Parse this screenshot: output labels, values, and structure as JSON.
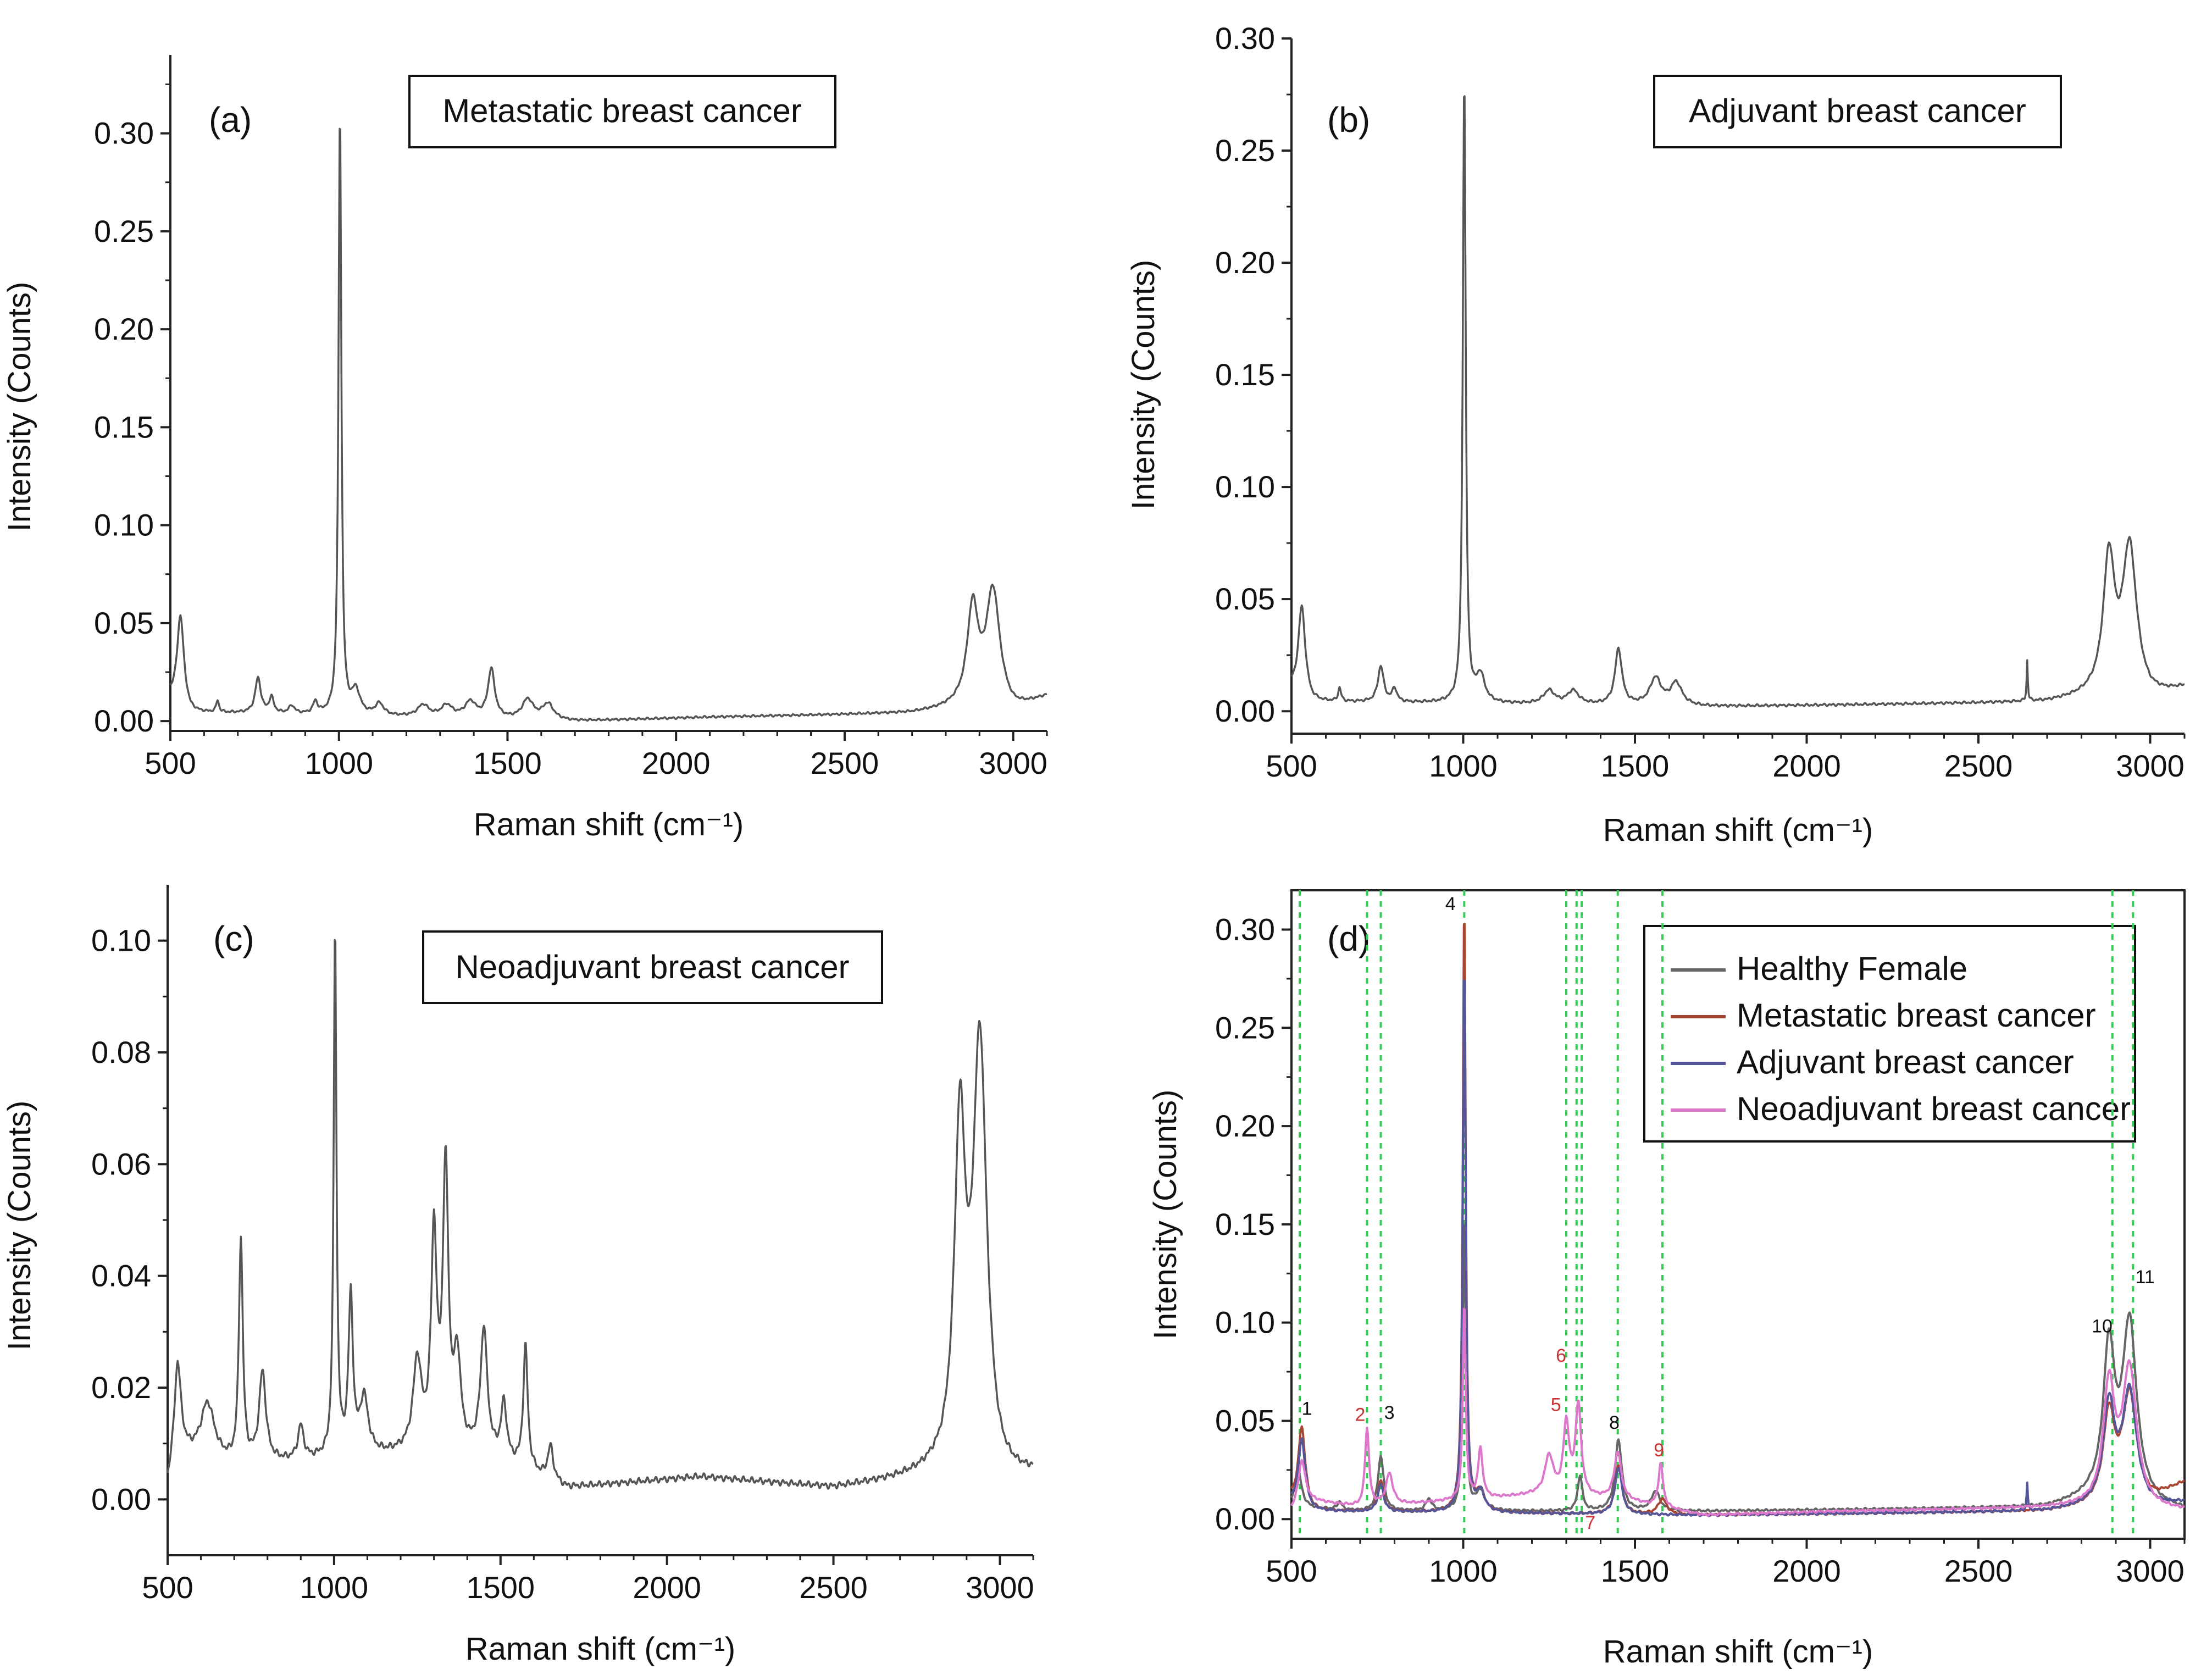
{
  "chart_data": [
    {
      "type": "line",
      "panel_label": "(a)",
      "box_title": "Metastatic breast cancer",
      "xlabel": "Raman shift (cm⁻¹)",
      "ylabel": "Intensity (Counts)",
      "xlim": [
        500,
        3100
      ],
      "ylim": [
        -0.005,
        0.34
      ],
      "xticks": [
        500,
        1000,
        1500,
        2000,
        2500,
        3000
      ],
      "xtick_labels": [
        "500",
        "1000",
        "1500",
        "2000",
        "2500",
        "3000"
      ],
      "yticks": [
        0,
        0.05,
        0.1,
        0.15,
        0.2,
        0.25,
        0.3
      ],
      "ytick_labels": [
        "0.00",
        "0.05",
        "0.10",
        "0.15",
        "0.20",
        "0.25",
        "0.30"
      ],
      "series": [
        {
          "name": "Metastatic breast cancer",
          "color": "#555555",
          "peaks": [
            [
              530,
              0.046,
              12
            ],
            [
              640,
              0.006,
              5
            ],
            [
              760,
              0.018,
              10
            ],
            [
              800,
              0.008,
              8
            ],
            [
              860,
              0.004,
              10
            ],
            [
              930,
              0.006,
              8
            ],
            [
              1003,
              0.31,
              5
            ],
            [
              1050,
              0.012,
              15
            ],
            [
              1120,
              0.006,
              15
            ],
            [
              1250,
              0.006,
              20
            ],
            [
              1320,
              0.006,
              20
            ],
            [
              1390,
              0.008,
              20
            ],
            [
              1452,
              0.025,
              12
            ],
            [
              1560,
              0.01,
              20
            ],
            [
              1620,
              0.008,
              20
            ],
            [
              2880,
              0.05,
              20
            ],
            [
              2940,
              0.06,
              25
            ]
          ],
          "baseline": [
            [
              500,
              0.012
            ],
            [
              560,
              0.004
            ],
            [
              700,
              0.004
            ],
            [
              1700,
              0.0
            ],
            [
              2100,
              0.002
            ],
            [
              2700,
              0.004
            ],
            [
              2830,
              0.006
            ],
            [
              3000,
              0.004
            ],
            [
              3100,
              0.012
            ]
          ]
        }
      ]
    },
    {
      "type": "line",
      "panel_label": "(b)",
      "box_title": "Adjuvant breast cancer",
      "xlabel": "Raman shift (cm⁻¹)",
      "ylabel": "Intensity (Counts)",
      "xlim": [
        500,
        3100
      ],
      "ylim": [
        -0.01,
        0.3
      ],
      "xticks": [
        500,
        1000,
        1500,
        2000,
        2500,
        3000
      ],
      "xtick_labels": [
        "500",
        "1000",
        "1500",
        "2000",
        "2500",
        "3000"
      ],
      "yticks": [
        0,
        0.05,
        0.1,
        0.15,
        0.2,
        0.25,
        0.3
      ],
      "ytick_labels": [
        "0.00",
        "0.05",
        "0.10",
        "0.15",
        "0.20",
        "0.25",
        "0.30"
      ],
      "series": [
        {
          "name": "Adjuvant breast cancer",
          "color": "#555555",
          "peaks": [
            [
              530,
              0.04,
              12
            ],
            [
              640,
              0.006,
              5
            ],
            [
              760,
              0.016,
              10
            ],
            [
              800,
              0.006,
              8
            ],
            [
              1003,
              0.28,
              5
            ],
            [
              1050,
              0.012,
              15
            ],
            [
              1250,
              0.006,
              20
            ],
            [
              1320,
              0.006,
              20
            ],
            [
              1452,
              0.025,
              12
            ],
            [
              1560,
              0.012,
              20
            ],
            [
              1620,
              0.01,
              20
            ],
            [
              2642,
              0.018,
              2
            ],
            [
              2880,
              0.06,
              20
            ],
            [
              2940,
              0.066,
              25
            ]
          ],
          "baseline": [
            [
              500,
              0.01
            ],
            [
              560,
              0.004
            ],
            [
              700,
              0.004
            ],
            [
              1700,
              0.002
            ],
            [
              2700,
              0.004
            ],
            [
              2830,
              0.006
            ],
            [
              3000,
              0.005
            ],
            [
              3100,
              0.01
            ]
          ]
        }
      ]
    },
    {
      "type": "line",
      "panel_label": "(c)",
      "box_title": "Neoadjuvant breast cancer",
      "xlabel": "Raman shift (cm⁻¹)",
      "ylabel": "Intensity (Counts)",
      "xlim": [
        500,
        3100
      ],
      "ylim": [
        -0.01,
        0.11
      ],
      "xticks": [
        500,
        1000,
        1500,
        2000,
        2500,
        3000
      ],
      "xtick_labels": [
        "500",
        "1000",
        "1500",
        "2000",
        "2500",
        "3000"
      ],
      "yticks": [
        0,
        0.02,
        0.04,
        0.06,
        0.08,
        0.1
      ],
      "ytick_labels": [
        "0.00",
        "0.02",
        "0.04",
        "0.06",
        "0.08",
        "0.10"
      ],
      "series": [
        {
          "name": "Neoadjuvant breast cancer",
          "color": "#555555",
          "peaks": [
            [
              530,
              0.016,
              12
            ],
            [
              620,
              0.01,
              25
            ],
            [
              720,
              0.04,
              7
            ],
            [
              785,
              0.016,
              12
            ],
            [
              900,
              0.006,
              10
            ],
            [
              1003,
              0.095,
              5
            ],
            [
              1050,
              0.028,
              8
            ],
            [
              1090,
              0.01,
              15
            ],
            [
              1250,
              0.016,
              15
            ],
            [
              1300,
              0.038,
              10
            ],
            [
              1335,
              0.05,
              10
            ],
            [
              1370,
              0.016,
              12
            ],
            [
              1450,
              0.022,
              12
            ],
            [
              1510,
              0.01,
              10
            ],
            [
              1575,
              0.022,
              8
            ],
            [
              1650,
              0.006,
              10
            ],
            [
              2880,
              0.06,
              20
            ],
            [
              2940,
              0.077,
              25
            ]
          ],
          "baseline": [
            [
              500,
              0.002
            ],
            [
              530,
              0.008
            ],
            [
              700,
              0.006
            ],
            [
              1200,
              0.008
            ],
            [
              1450,
              0.008
            ],
            [
              1700,
              0.002
            ],
            [
              2100,
              0.004
            ],
            [
              2500,
              0.002
            ],
            [
              2800,
              0.004
            ],
            [
              3000,
              0.002
            ],
            [
              3100,
              0.004
            ]
          ]
        }
      ]
    },
    {
      "type": "line",
      "panel_label": "(d)",
      "xlabel": "Raman shift (cm⁻¹)",
      "ylabel": "Intensity (Counts)",
      "xlim": [
        500,
        3100
      ],
      "ylim": [
        -0.01,
        0.32
      ],
      "xticks": [
        500,
        1000,
        1500,
        2000,
        2500,
        3000
      ],
      "xtick_labels": [
        "500",
        "1000",
        "1500",
        "2000",
        "2500",
        "3000"
      ],
      "yticks": [
        0,
        0.05,
        0.1,
        0.15,
        0.2,
        0.25,
        0.3
      ],
      "ytick_labels": [
        "0.00",
        "0.05",
        "0.10",
        "0.15",
        "0.20",
        "0.25",
        "0.30"
      ],
      "reference_lines": [
        524,
        720,
        760,
        1003,
        1300,
        1330,
        1345,
        1450,
        1580,
        2890,
        2950
      ],
      "reference_line_color": "#33cc55",
      "legend": [
        {
          "label": "Healthy Female",
          "color": "#666666"
        },
        {
          "label": "Metastatic breast cancer",
          "color": "#aa4433"
        },
        {
          "label": "Adjuvant breast cancer",
          "color": "#555599"
        },
        {
          "label": "Neoadjuvant breast cancer",
          "color": "#dd77cc"
        }
      ],
      "annotations": [
        {
          "label": "1",
          "x": 545,
          "y": 0.053,
          "color": "#111111"
        },
        {
          "label": "2",
          "x": 700,
          "y": 0.05,
          "color": "#cc3333"
        },
        {
          "label": "3",
          "x": 785,
          "y": 0.051,
          "color": "#111111"
        },
        {
          "label": "4",
          "x": 963,
          "y": 0.31,
          "color": "#111111"
        },
        {
          "label": "5",
          "x": 1270,
          "y": 0.055,
          "color": "#cc3333"
        },
        {
          "label": "6",
          "x": 1285,
          "y": 0.08,
          "color": "#cc3333"
        },
        {
          "label": "7",
          "x": 1370,
          "y": -0.005,
          "color": "#cc3333"
        },
        {
          "label": "8",
          "x": 1440,
          "y": 0.046,
          "color": "#111111"
        },
        {
          "label": "9",
          "x": 1570,
          "y": 0.032,
          "color": "#cc3333"
        },
        {
          "label": "10",
          "x": 2860,
          "y": 0.095,
          "color": "#111111"
        },
        {
          "label": "11",
          "x": 2985,
          "y": 0.12,
          "color": "#111111"
        }
      ],
      "series": [
        {
          "name": "Healthy Female",
          "color": "#666666",
          "peaks": [
            [
              520,
              0.018,
              12
            ],
            [
              640,
              0.004,
              8
            ],
            [
              760,
              0.028,
              10
            ],
            [
              900,
              0.006,
              10
            ],
            [
              1003,
              0.15,
              5
            ],
            [
              1050,
              0.01,
              15
            ],
            [
              1340,
              0.018,
              8
            ],
            [
              1452,
              0.036,
              12
            ],
            [
              1560,
              0.01,
              15
            ],
            [
              2880,
              0.075,
              20
            ],
            [
              2940,
              0.09,
              25
            ]
          ],
          "baseline": [
            [
              500,
              0.006
            ],
            [
              700,
              0.004
            ],
            [
              1200,
              0.004
            ],
            [
              1700,
              0.004
            ],
            [
              2700,
              0.006
            ],
            [
              2830,
              0.01
            ],
            [
              3000,
              0.006
            ],
            [
              3100,
              0.004
            ]
          ]
        },
        {
          "name": "Metastatic breast cancer",
          "color": "#aa4433",
          "peaks": [
            [
              530,
              0.04,
              12
            ],
            [
              760,
              0.016,
              10
            ],
            [
              1003,
              0.31,
              5
            ],
            [
              1050,
              0.01,
              15
            ],
            [
              1452,
              0.025,
              12
            ],
            [
              1580,
              0.008,
              15
            ],
            [
              2880,
              0.045,
              20
            ],
            [
              2940,
              0.055,
              25
            ]
          ],
          "baseline": [
            [
              500,
              0.01
            ],
            [
              560,
              0.004
            ],
            [
              1700,
              0.002
            ],
            [
              2700,
              0.004
            ],
            [
              2830,
              0.006
            ],
            [
              3000,
              0.008
            ],
            [
              3100,
              0.018
            ]
          ]
        },
        {
          "name": "Adjuvant breast cancer",
          "color": "#555599",
          "peaks": [
            [
              530,
              0.035,
              12
            ],
            [
              760,
              0.014,
              10
            ],
            [
              1003,
              0.28,
              5
            ],
            [
              1050,
              0.01,
              15
            ],
            [
              1452,
              0.024,
              12
            ],
            [
              2642,
              0.014,
              2
            ],
            [
              2880,
              0.05,
              20
            ],
            [
              2940,
              0.058,
              25
            ]
          ],
          "baseline": [
            [
              500,
              0.008
            ],
            [
              560,
              0.004
            ],
            [
              1700,
              0.002
            ],
            [
              2700,
              0.004
            ],
            [
              2830,
              0.006
            ],
            [
              3000,
              0.005
            ],
            [
              3100,
              0.008
            ]
          ]
        },
        {
          "name": "Neoadjuvant breast cancer",
          "color": "#dd77cc",
          "peaks": [
            [
              530,
              0.02,
              12
            ],
            [
              720,
              0.04,
              7
            ],
            [
              785,
              0.016,
              12
            ],
            [
              1003,
              0.1,
              5
            ],
            [
              1050,
              0.025,
              8
            ],
            [
              1250,
              0.02,
              15
            ],
            [
              1300,
              0.036,
              10
            ],
            [
              1335,
              0.046,
              10
            ],
            [
              1450,
              0.024,
              12
            ],
            [
              1575,
              0.022,
              8
            ],
            [
              2880,
              0.06,
              20
            ],
            [
              2940,
              0.07,
              25
            ]
          ],
          "baseline": [
            [
              500,
              0.004
            ],
            [
              530,
              0.01
            ],
            [
              700,
              0.006
            ],
            [
              1200,
              0.012
            ],
            [
              1450,
              0.01
            ],
            [
              1700,
              0.002
            ],
            [
              2100,
              0.004
            ],
            [
              2800,
              0.006
            ],
            [
              3000,
              0.004
            ],
            [
              3100,
              0.004
            ]
          ]
        }
      ]
    }
  ]
}
